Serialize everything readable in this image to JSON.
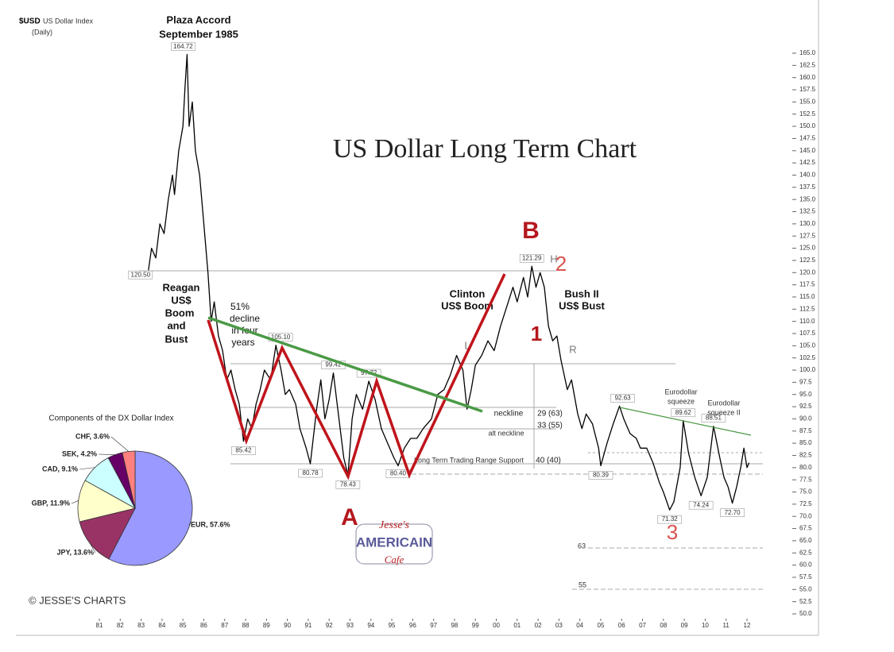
{
  "chart_data": [
    {
      "type": "line",
      "title": "US Dollar Long Term Chart",
      "subtitle": "US Dollar Index",
      "period": "(Daily)",
      "x": [
        1983.35,
        1983.5,
        1983.7,
        1983.9,
        1984.1,
        1984.3,
        1984.5,
        1984.6,
        1984.8,
        1985.0,
        1985.1,
        1985.2,
        1985.3,
        1985.45,
        1985.6,
        1985.8,
        1986.0,
        1986.2,
        1986.35,
        1986.5,
        1986.7,
        1986.9,
        1987.1,
        1987.3,
        1987.5,
        1987.7,
        1987.9,
        1988.1,
        1988.3,
        1988.5,
        1988.7,
        1988.9,
        1989.2,
        1989.45,
        1989.7,
        1989.9,
        1990.1,
        1990.4,
        1990.6,
        1990.9,
        1991.1,
        1991.4,
        1991.6,
        1991.8,
        1992.0,
        1992.2,
        1992.5,
        1992.7,
        1992.9,
        1993.1,
        1993.3,
        1993.6,
        1993.9,
        1994.2,
        1994.5,
        1994.8,
        1995.1,
        1995.3,
        1995.6,
        1995.9,
        1996.2,
        1996.5,
        1996.9,
        1997.2,
        1997.5,
        1997.8,
        1998.1,
        1998.4,
        1998.6,
        1998.8,
        1999.0,
        1999.3,
        1999.6,
        1999.9,
        2000.2,
        2000.5,
        2000.8,
        2001.0,
        2001.3,
        2001.5,
        2001.7,
        2001.9,
        2002.1,
        2002.3,
        2002.5,
        2002.7,
        2002.9,
        2003.1,
        2003.4,
        2003.6,
        2003.9,
        2004.1,
        2004.3,
        2004.6,
        2004.9,
        2005.0,
        2005.3,
        2005.6,
        2005.9,
        2006.1,
        2006.4,
        2006.7,
        2006.9,
        2007.2,
        2007.5,
        2007.8,
        2008.0,
        2008.3,
        2008.5,
        2008.8,
        2008.95,
        2009.2,
        2009.5,
        2009.8,
        2010.1,
        2010.4,
        2010.7,
        2010.9,
        2011.1,
        2011.3,
        2011.5,
        2011.7,
        2011.85,
        2012.0,
        2012.1
      ],
      "series": [
        {
          "name": "$USD",
          "color": "#000000",
          "values": [
            120.5,
            125,
            123,
            130,
            128,
            135,
            140,
            136,
            145,
            150,
            158,
            164.72,
            150,
            155,
            145,
            140,
            130,
            120,
            110,
            114,
            107,
            104,
            98,
            100,
            96,
            93,
            85.42,
            90,
            88,
            93,
            96,
            100,
            98,
            105.1,
            100,
            95,
            96,
            93,
            88,
            84,
            80.78,
            92,
            98,
            90,
            94,
            99.42,
            89,
            82,
            78.43,
            90,
            95,
            92,
            97.72,
            94,
            88,
            85,
            82,
            80.4,
            84,
            86,
            86,
            88,
            90,
            95,
            96,
            99,
            103,
            100,
            92,
            96,
            101,
            103,
            106,
            104,
            109,
            113,
            117,
            114,
            119,
            115,
            121.29,
            117,
            120,
            117,
            109,
            106,
            107,
            102,
            96,
            98,
            91,
            88,
            91,
            89,
            84,
            80.39,
            85,
            89,
            92.63,
            90,
            87,
            86,
            84,
            84,
            81,
            77,
            75,
            71.32,
            73,
            80,
            89.62,
            83,
            78,
            74.24,
            78,
            88.51,
            82,
            78,
            76,
            72.7,
            76,
            80,
            84,
            80,
            81
          ]
        }
      ],
      "xlim": [
        1981,
        2012
      ],
      "xticks": [
        {
          "value": 1981,
          "label": "81"
        },
        {
          "value": 1982,
          "label": "82"
        },
        {
          "value": 1983,
          "label": "83"
        },
        {
          "value": 1984,
          "label": "84"
        },
        {
          "value": 1985,
          "label": "85"
        },
        {
          "value": 1986,
          "label": "86"
        },
        {
          "value": 1987,
          "label": "87"
        },
        {
          "value": 1988,
          "label": "88"
        },
        {
          "value": 1989,
          "label": "89"
        },
        {
          "value": 1990,
          "label": "90"
        },
        {
          "value": 1991,
          "label": "91"
        },
        {
          "value": 1992,
          "label": "92"
        },
        {
          "value": 1993,
          "label": "93"
        },
        {
          "value": 1994,
          "label": "94"
        },
        {
          "value": 1995,
          "label": "95"
        },
        {
          "value": 1996,
          "label": "96"
        },
        {
          "value": 1997,
          "label": "97"
        },
        {
          "value": 1998,
          "label": "98"
        },
        {
          "value": 1999,
          "label": "99"
        },
        {
          "value": 2000,
          "label": "00"
        },
        {
          "value": 2001,
          "label": "01"
        },
        {
          "value": 2002,
          "label": "02"
        },
        {
          "value": 2003,
          "label": "03"
        },
        {
          "value": 2004,
          "label": "04"
        },
        {
          "value": 2005,
          "label": "05"
        },
        {
          "value": 2006,
          "label": "06"
        },
        {
          "value": 2007,
          "label": "07"
        },
        {
          "value": 2008,
          "label": "08"
        },
        {
          "value": 2009,
          "label": "09"
        },
        {
          "value": 2010,
          "label": "10"
        },
        {
          "value": 2011,
          "label": "11"
        },
        {
          "value": 2012,
          "label": "12"
        }
      ],
      "ylim": [
        50,
        165
      ],
      "yticks": [
        {
          "value": 50,
          "label": "50.0"
        },
        {
          "value": 52.5,
          "label": "52.5"
        },
        {
          "value": 55,
          "label": "55.0"
        },
        {
          "value": 57.5,
          "label": "57.5"
        },
        {
          "value": 60,
          "label": "60.0"
        },
        {
          "value": 62.5,
          "label": "62.5"
        },
        {
          "value": 65,
          "label": "65.0"
        },
        {
          "value": 67.5,
          "label": "67.5"
        },
        {
          "value": 70,
          "label": "70.0"
        },
        {
          "value": 72.5,
          "label": "72.5"
        },
        {
          "value": 75,
          "label": "75.0"
        },
        {
          "value": 77.5,
          "label": "77.5"
        },
        {
          "value": 80,
          "label": "80.0"
        },
        {
          "value": 82.5,
          "label": "82.5"
        },
        {
          "value": 85,
          "label": "85.0"
        },
        {
          "value": 87.5,
          "label": "87.5"
        },
        {
          "value": 90,
          "label": "90.0"
        },
        {
          "value": 92.5,
          "label": "92.5"
        },
        {
          "value": 95,
          "label": "95.0"
        },
        {
          "value": 97.5,
          "label": "97.5"
        },
        {
          "value": 100,
          "label": "100.0"
        },
        {
          "value": 102.5,
          "label": "102.5"
        },
        {
          "value": 105,
          "label": "105.0"
        },
        {
          "value": 107.5,
          "label": "107.5"
        },
        {
          "value": 110,
          "label": "110.0"
        },
        {
          "value": 112.5,
          "label": "112.5"
        },
        {
          "value": 115,
          "label": "115.0"
        },
        {
          "value": 117.5,
          "label": "117.5"
        },
        {
          "value": 120,
          "label": "120.0"
        },
        {
          "value": 122.5,
          "label": "122.5"
        },
        {
          "value": 125,
          "label": "125.0"
        },
        {
          "value": 127.5,
          "label": "127.5"
        },
        {
          "value": 130,
          "label": "130.0"
        },
        {
          "value": 132.5,
          "label": "132.5"
        },
        {
          "value": 135,
          "label": "135.0"
        },
        {
          "value": 137.5,
          "label": "137.5"
        },
        {
          "value": 140,
          "label": "140.0"
        },
        {
          "value": 142.5,
          "label": "142.5"
        },
        {
          "value": 145,
          "label": "145.0"
        },
        {
          "value": 147.5,
          "label": "147.5"
        },
        {
          "value": 150,
          "label": "150.0"
        },
        {
          "value": 152.5,
          "label": "152.5"
        },
        {
          "value": 155,
          "label": "155.0"
        },
        {
          "value": 157.5,
          "label": "157.5"
        },
        {
          "value": 160,
          "label": "160.0"
        },
        {
          "value": 162.5,
          "label": "162.5"
        },
        {
          "value": 165,
          "label": "165.0"
        }
      ],
      "point_labels": [
        {
          "x": 1985.2,
          "value": 164.72,
          "label": "164.72"
        },
        {
          "x": 1983.35,
          "value": 120.5,
          "label": "120.50"
        },
        {
          "x": 1987.9,
          "value": 85.42,
          "label": "85.42"
        },
        {
          "x": 1989.45,
          "value": 105.1,
          "label": "105.10"
        },
        {
          "x": 1991.1,
          "value": 80.78,
          "label": "80.78"
        },
        {
          "x": 1992.2,
          "value": 99.42,
          "label": "99.42"
        },
        {
          "x": 1992.9,
          "value": 78.43,
          "label": "78.43"
        },
        {
          "x": 1993.9,
          "value": 97.72,
          "label": "97.72"
        },
        {
          "x": 1995.3,
          "value": 80.4,
          "label": "80.40"
        },
        {
          "x": 2001.7,
          "value": 121.29,
          "label": "121.29"
        },
        {
          "x": 2005.0,
          "value": 80.39,
          "label": "80.39"
        },
        {
          "x": 2005.9,
          "value": 92.63,
          "label": "92.63"
        },
        {
          "x": 2008.95,
          "value": 89.62,
          "label": "89.62"
        },
        {
          "x": 2010.4,
          "value": 88.51,
          "label": "88.51"
        },
        {
          "x": 2008.3,
          "value": 71.32,
          "label": "71.32"
        },
        {
          "x": 2009.8,
          "value": 74.24,
          "label": "74.24"
        },
        {
          "x": 2011.3,
          "value": 72.7,
          "label": "72.70"
        }
      ],
      "annotations": [
        "Plaza Accord",
        "September 1985",
        "Reagan",
        "US$",
        "Boom",
        "and",
        "Bust",
        "51%",
        "decline",
        "in four",
        "years",
        "Clinton",
        "US$ Boom",
        "Bush II",
        "US$ Bust",
        "B",
        "A",
        "1",
        "2",
        "3",
        "H",
        "L",
        "R",
        "neckline",
        "29 (63)",
        "33 (55)",
        "alt neckline",
        "Long Term Trading Range Support",
        "40 (40)",
        "Eurodollar",
        "squeeze",
        "Eurodollar",
        "squeeze II",
        "63",
        "55"
      ]
    },
    {
      "type": "pie",
      "title": "Components of the DX Dollar Index",
      "categories": [
        "EUR",
        "JPY",
        "GBP",
        "CAD",
        "SEK",
        "CHF"
      ],
      "values": [
        57.6,
        13.6,
        11.9,
        9.1,
        4.2,
        3.6
      ],
      "value_labels": [
        "EUR, 57.6%",
        "JPY, 13.6%",
        "GBP, 11.9%",
        "CAD, 9.1%",
        "SEK, 4.2%",
        "CHF, 3.6%"
      ],
      "colors": [
        "#9999ff",
        "#993366",
        "#ffffcc",
        "#ccffff",
        "#660066",
        "#ff8080"
      ]
    }
  ],
  "logo": {
    "top": "Jesse's",
    "middle": "AMERICAIN",
    "bottom": "Cafe"
  },
  "copyright": "© JESSE'S CHARTS"
}
